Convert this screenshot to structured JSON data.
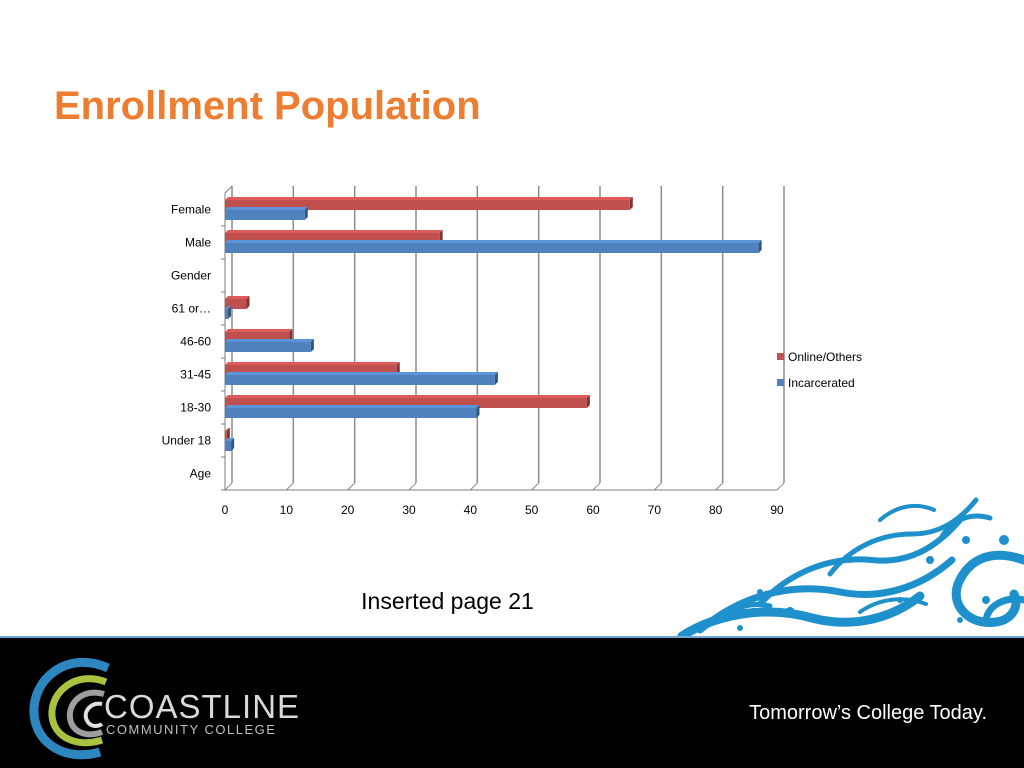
{
  "slide": {
    "title": "Enrollment Population",
    "caption": "Inserted page 21",
    "tagline": "Tomorrow’s College Today.",
    "logo": {
      "name": "COASTLINE",
      "subtitle": "COMMUNITY COLLEGE"
    },
    "colors": {
      "title": "#ED7D31",
      "footer": "#000000",
      "swirl": "#1e90cc"
    }
  },
  "chart_data": {
    "type": "bar",
    "orientation": "horizontal",
    "categories": [
      "Age",
      "Under 18",
      "18-30",
      "31-45",
      "46-60",
      "61 or…",
      "Gender",
      "Male",
      "Female"
    ],
    "series": [
      {
        "name": "Incarcerated",
        "color": "#4F81BD",
        "values": [
          0,
          1,
          41,
          44,
          14,
          0.5,
          0,
          87,
          13
        ]
      },
      {
        "name": "Online/Others",
        "color": "#C0504D",
        "values": [
          0,
          0.3,
          59,
          28,
          10.5,
          3.5,
          0,
          35,
          66
        ]
      }
    ],
    "x_ticks": [
      "0",
      "10",
      "20",
      "30",
      "40",
      "50",
      "60",
      "70",
      "80",
      "90"
    ],
    "xlim": [
      0,
      90
    ],
    "grid": true,
    "legend": "right"
  }
}
